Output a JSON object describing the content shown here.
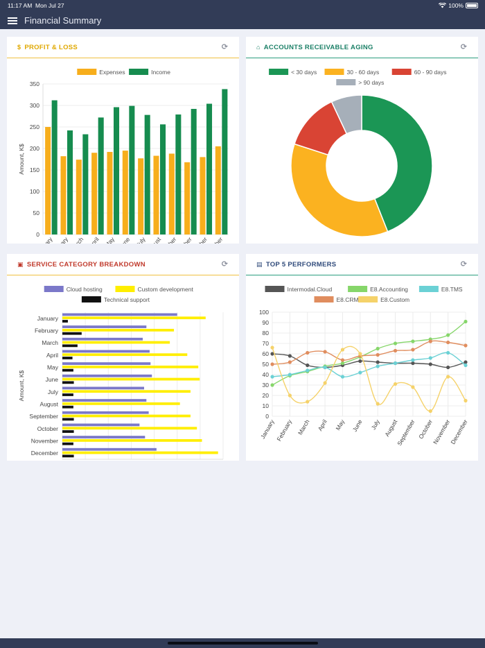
{
  "status_bar": {
    "time": "11:17 AM",
    "date": "Mon Jul 27",
    "battery": "100%"
  },
  "app": {
    "title": "Financial Summary"
  },
  "months": [
    "January",
    "February",
    "March",
    "April",
    "May",
    "June",
    "July",
    "August",
    "September",
    "October",
    "November",
    "December"
  ],
  "cards": {
    "profit_loss": {
      "title": "PROFIT & LOSS",
      "icon": "$",
      "accent": "#e0a800"
    },
    "ar_aging": {
      "title": "ACCOUNTS RECEIVABLE AGING",
      "icon": "⌂",
      "accent": "#1a7f66"
    },
    "service_breakdown": {
      "title": "SERVICE CATEGORY BREAKDOWN",
      "icon": "▣",
      "accent": "#c0392b"
    },
    "top_performers": {
      "title": "TOP 5 PERFORMERS",
      "icon": "▤",
      "accent": "#2f4a7a"
    }
  },
  "chart_data": [
    {
      "id": "profit_loss",
      "type": "bar",
      "categories": [
        "January",
        "February",
        "March",
        "April",
        "May",
        "June",
        "July",
        "August",
        "September",
        "October",
        "November",
        "December"
      ],
      "series": [
        {
          "name": "Expenses",
          "color": "#f7ae1c",
          "values": [
            250,
            182,
            174,
            190,
            192,
            195,
            177,
            183,
            188,
            168,
            180,
            205
          ]
        },
        {
          "name": "Income",
          "color": "#168c4f",
          "values": [
            312,
            242,
            233,
            272,
            296,
            299,
            278,
            256,
            279,
            292,
            304,
            338
          ]
        }
      ],
      "ylabel": "Amount, K$",
      "ylim": [
        0,
        350
      ],
      "yticks": [
        0,
        50,
        100,
        150,
        200,
        250,
        300,
        350
      ]
    },
    {
      "id": "ar_aging",
      "type": "pie",
      "labels": [
        "< 30 days",
        "30 - 60 days",
        "60 - 90 days",
        "> 90 days"
      ],
      "values": [
        44,
        36,
        13,
        7
      ],
      "colors": [
        "#1b9655",
        "#fbb220",
        "#d94434",
        "#a6afb9"
      ]
    },
    {
      "id": "service_breakdown",
      "type": "bar",
      "orientation": "horizontal",
      "categories": [
        "January",
        "February",
        "March",
        "April",
        "May",
        "June",
        "July",
        "August",
        "September",
        "October",
        "November",
        "December"
      ],
      "series": [
        {
          "name": "Cloud hosting",
          "color": "#7b78c9",
          "values": [
            250,
            183,
            175,
            190,
            192,
            195,
            178,
            183,
            188,
            168,
            180,
            205
          ]
        },
        {
          "name": "Custom development",
          "color": "#ffee00",
          "values": [
            312,
            243,
            234,
            272,
            296,
            299,
            279,
            256,
            279,
            293,
            304,
            339
          ]
        },
        {
          "name": "Technical support",
          "color": "#111111",
          "values": [
            12,
            42,
            33,
            22,
            24,
            25,
            24,
            24,
            25,
            25,
            24,
            25
          ]
        }
      ],
      "ylabel": "Amount, K$",
      "xlim": [
        0,
        350
      ],
      "xticks": [
        0,
        50,
        100,
        150,
        200,
        250,
        300,
        350
      ]
    },
    {
      "id": "top_performers",
      "type": "line",
      "categories": [
        "January",
        "February",
        "March",
        "April",
        "May",
        "June",
        "July",
        "August",
        "September",
        "October",
        "November",
        "December"
      ],
      "series": [
        {
          "name": "Intermodal.Cloud",
          "color": "#555555",
          "values": [
            60,
            58,
            49,
            47,
            49,
            53,
            52,
            51,
            51,
            50,
            47,
            52
          ]
        },
        {
          "name": "E8.Accounting",
          "color": "#86d66a",
          "values": [
            30,
            39,
            43,
            48,
            51,
            57,
            65,
            70,
            72,
            74,
            78,
            91
          ]
        },
        {
          "name": "E8.TMS",
          "color": "#6bd1d5",
          "values": [
            38,
            40,
            44,
            47,
            38,
            42,
            48,
            51,
            54,
            56,
            61,
            49
          ]
        },
        {
          "name": "E8.CRM",
          "color": "#e08d5e",
          "values": [
            50,
            52,
            61,
            62,
            54,
            58,
            59,
            63,
            64,
            72,
            71,
            68
          ]
        },
        {
          "name": "E8.Custom",
          "color": "#f5d26a",
          "values": [
            66,
            20,
            14,
            32,
            64,
            60,
            12,
            31,
            28,
            5,
            38,
            15
          ]
        }
      ],
      "ylim": [
        0,
        100
      ],
      "yticks": [
        0,
        10,
        20,
        30,
        40,
        50,
        60,
        70,
        80,
        90,
        100
      ]
    }
  ]
}
